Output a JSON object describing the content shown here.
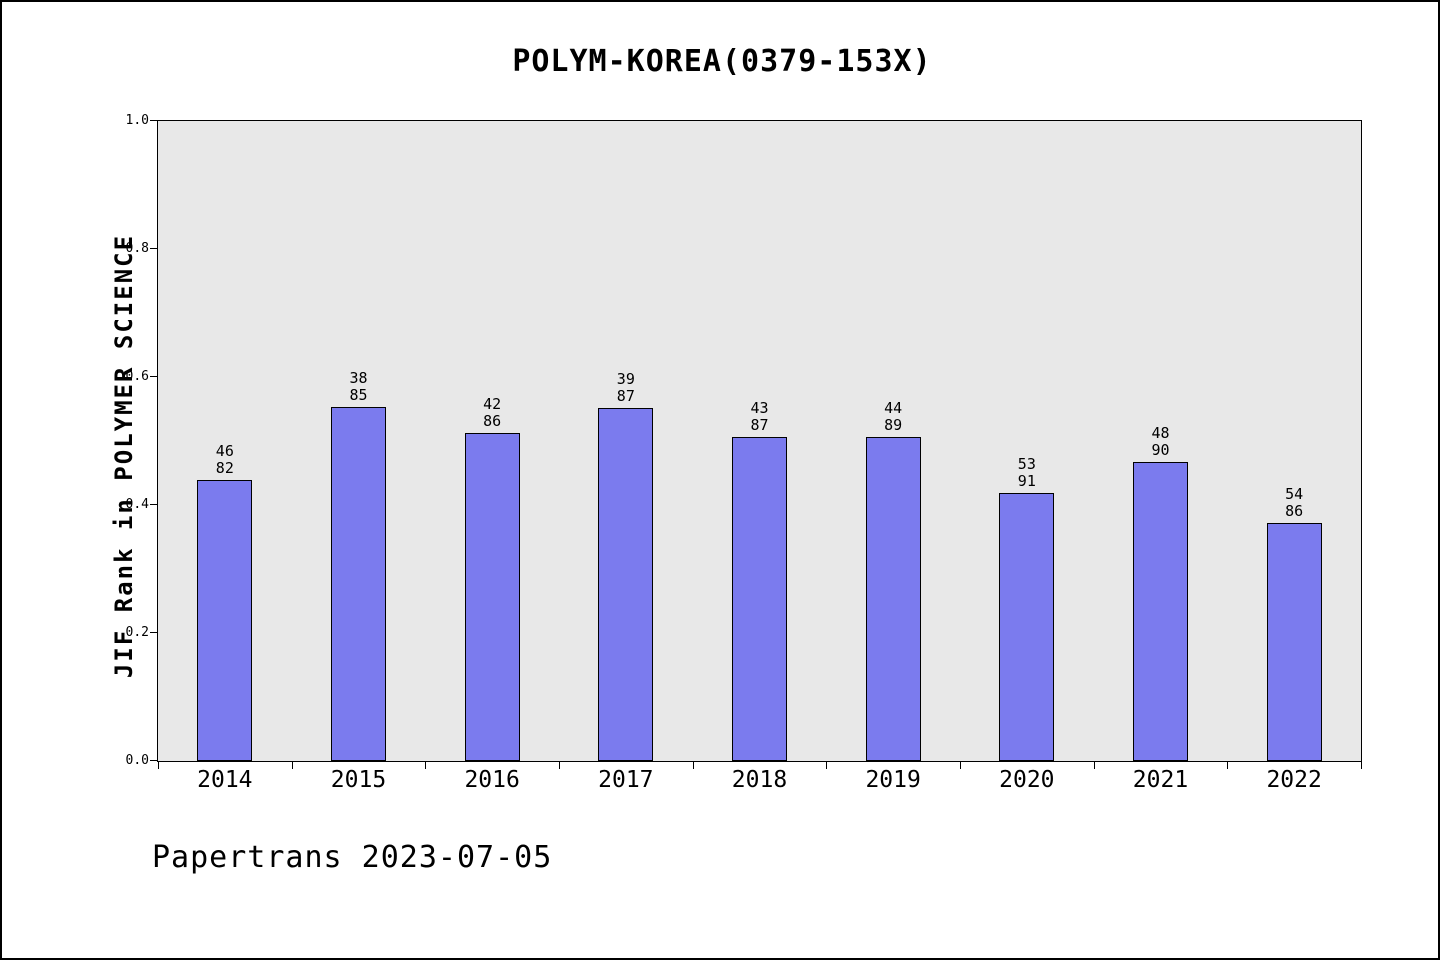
{
  "page": {
    "title": "POLYM-KOREA(0379-153X)",
    "footer": "Papertrans 2023-07-05"
  },
  "chart_data": {
    "type": "bar",
    "title": "POLYM-KOREA(0379-153X)",
    "xlabel": "",
    "ylabel": "JIF Rank in POLYMER SCIENCE",
    "ylim": [
      0.0,
      1.0
    ],
    "ytick_labels": [
      "0.0",
      "0.2",
      "0.4",
      "0.6",
      "0.8",
      "1.0"
    ],
    "grid": false,
    "legend": "none",
    "plot_bg_color": "#e8e8e8",
    "bar_color": "#7b7bee",
    "bar_border_color": "#000000",
    "categories": [
      "2014",
      "2015",
      "2016",
      "2017",
      "2018",
      "2019",
      "2020",
      "2021",
      "2022"
    ],
    "bars": [
      {
        "year": "2014",
        "rank": 46,
        "total": 82,
        "value": 0.439
      },
      {
        "year": "2015",
        "rank": 38,
        "total": 85,
        "value": 0.553
      },
      {
        "year": "2016",
        "rank": 42,
        "total": 86,
        "value": 0.512
      },
      {
        "year": "2017",
        "rank": 39,
        "total": 87,
        "value": 0.552
      },
      {
        "year": "2018",
        "rank": 43,
        "total": 87,
        "value": 0.506
      },
      {
        "year": "2019",
        "rank": 44,
        "total": 89,
        "value": 0.506
      },
      {
        "year": "2020",
        "rank": 53,
        "total": 91,
        "value": 0.418
      },
      {
        "year": "2021",
        "rank": 48,
        "total": 90,
        "value": 0.467
      },
      {
        "year": "2022",
        "rank": 54,
        "total": 86,
        "value": 0.372
      }
    ]
  }
}
